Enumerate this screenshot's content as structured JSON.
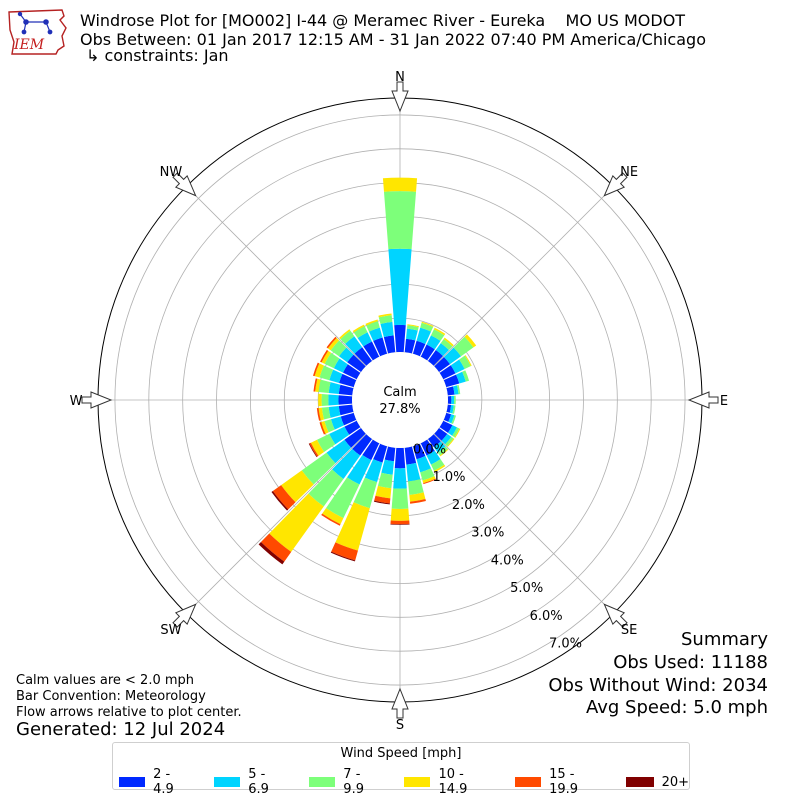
{
  "logo": {
    "text": "IEM"
  },
  "header": {
    "title": "Windrose Plot for [MO002] I-44 @ Meramec River - Eureka    MO US MODOT",
    "period": "Obs Between: 01 Jan 2017 12:15 AM - 31 Jan 2022 07:40 PM America/Chicago",
    "constraints": "↳ constraints: Jan"
  },
  "summary": {
    "heading": "Summary",
    "obs_used": "Obs Used: 11188",
    "obs_without_wind": "Obs Without Wind: 2034",
    "avg_speed": "Avg Speed: 5.0 mph"
  },
  "notes": {
    "calm": "Calm values are < 2.0 mph",
    "convention": "Bar Convention: Meteorology",
    "arrows": "Flow arrows relative to plot center.",
    "generated": "Generated: 12 Jul 2024"
  },
  "center": {
    "label": "Calm",
    "value": "27.8%"
  },
  "chart_data": {
    "type": "windrose",
    "calm_percent": 27.8,
    "radial_ticks": [
      "0.0%",
      "1.0%",
      "2.0%",
      "3.0%",
      "4.0%",
      "5.0%",
      "6.0%",
      "7.0%"
    ],
    "rmax": 7.5,
    "directions": [
      "N",
      "NE",
      "E",
      "SE",
      "S",
      "SW",
      "W",
      "NW"
    ],
    "legend_title": "Wind Speed [mph]",
    "bins": [
      {
        "label": "2 - 4.9",
        "color": "#0029FF"
      },
      {
        "label": "5 - 6.9",
        "color": "#00D4FF"
      },
      {
        "label": "7 - 9.9",
        "color": "#7DFF7A"
      },
      {
        "label": "10 - 14.9",
        "color": "#FFE600"
      },
      {
        "label": "15 - 19.9",
        "color": "#FF4A00"
      },
      {
        "label": "20+",
        "color": "#800000"
      }
    ],
    "sector_directions_deg": [
      0,
      10,
      20,
      30,
      40,
      50,
      60,
      70,
      80,
      90,
      100,
      110,
      120,
      130,
      140,
      150,
      160,
      170,
      180,
      190,
      200,
      210,
      220,
      230,
      240,
      250,
      260,
      270,
      280,
      290,
      300,
      310,
      320,
      330,
      340,
      350
    ],
    "sector_values": [
      [
        0.8,
        2.25,
        1.7,
        0.4,
        0.0,
        0.0
      ],
      [
        0.4,
        0.3,
        0.1,
        0.03,
        0.0,
        0.0
      ],
      [
        0.4,
        0.4,
        0.15,
        0.03,
        0.0,
        0.0
      ],
      [
        0.4,
        0.3,
        0.2,
        0.05,
        0.0,
        0.0
      ],
      [
        0.4,
        0.25,
        0.15,
        0.05,
        0.0,
        0.0
      ],
      [
        0.4,
        0.4,
        0.45,
        0.1,
        0.0,
        0.0
      ],
      [
        0.4,
        0.3,
        0.2,
        0.03,
        0.0,
        0.0
      ],
      [
        0.4,
        0.2,
        0.1,
        0.0,
        0.0,
        0.0
      ],
      [
        0.2,
        0.12,
        0.05,
        0.0,
        0.0,
        0.0
      ],
      [
        0.1,
        0.08,
        0.05,
        0.0,
        0.0,
        0.0
      ],
      [
        0.1,
        0.08,
        0.05,
        0.0,
        0.0,
        0.0
      ],
      [
        0.15,
        0.1,
        0.05,
        0.0,
        0.0,
        0.0
      ],
      [
        0.3,
        0.15,
        0.08,
        0.03,
        0.0,
        0.0
      ],
      [
        0.3,
        0.15,
        0.08,
        0.03,
        0.0,
        0.0
      ],
      [
        0.3,
        0.2,
        0.1,
        0.03,
        0.0,
        0.0
      ],
      [
        0.4,
        0.3,
        0.2,
        0.05,
        0.0,
        0.0
      ],
      [
        0.4,
        0.4,
        0.25,
        0.08,
        0.03,
        0.0
      ],
      [
        0.5,
        0.5,
        0.4,
        0.2,
        0.06,
        0.0
      ],
      [
        0.6,
        0.6,
        0.6,
        0.35,
        0.1,
        0.02
      ],
      [
        0.4,
        0.4,
        0.4,
        0.3,
        0.15,
        0.03
      ],
      [
        0.5,
        0.6,
        0.8,
        1.3,
        0.3,
        0.03
      ],
      [
        0.55,
        0.8,
        1.1,
        0.2,
        0.05,
        0.0
      ],
      [
        0.6,
        0.85,
        1.0,
        1.65,
        0.35,
        0.1
      ],
      [
        0.6,
        0.65,
        0.9,
        0.75,
        0.3,
        0.05
      ],
      [
        0.4,
        0.5,
        0.4,
        0.2,
        0.05,
        0.02
      ],
      [
        0.4,
        0.3,
        0.2,
        0.1,
        0.05,
        0.0
      ],
      [
        0.4,
        0.3,
        0.2,
        0.1,
        0.05,
        0.0
      ],
      [
        0.4,
        0.3,
        0.2,
        0.1,
        0.0,
        0.0
      ],
      [
        0.4,
        0.3,
        0.3,
        0.1,
        0.05,
        0.0
      ],
      [
        0.45,
        0.3,
        0.3,
        0.15,
        0.05,
        0.0
      ],
      [
        0.45,
        0.3,
        0.3,
        0.1,
        0.05,
        0.0
      ],
      [
        0.5,
        0.3,
        0.3,
        0.1,
        0.05,
        0.0
      ],
      [
        0.5,
        0.4,
        0.2,
        0.05,
        0.0,
        0.0
      ],
      [
        0.5,
        0.3,
        0.2,
        0.05,
        0.0,
        0.0
      ],
      [
        0.5,
        0.3,
        0.2,
        0.05,
        0.0,
        0.0
      ],
      [
        0.5,
        0.4,
        0.2,
        0.05,
        0.0,
        0.0
      ]
    ]
  }
}
